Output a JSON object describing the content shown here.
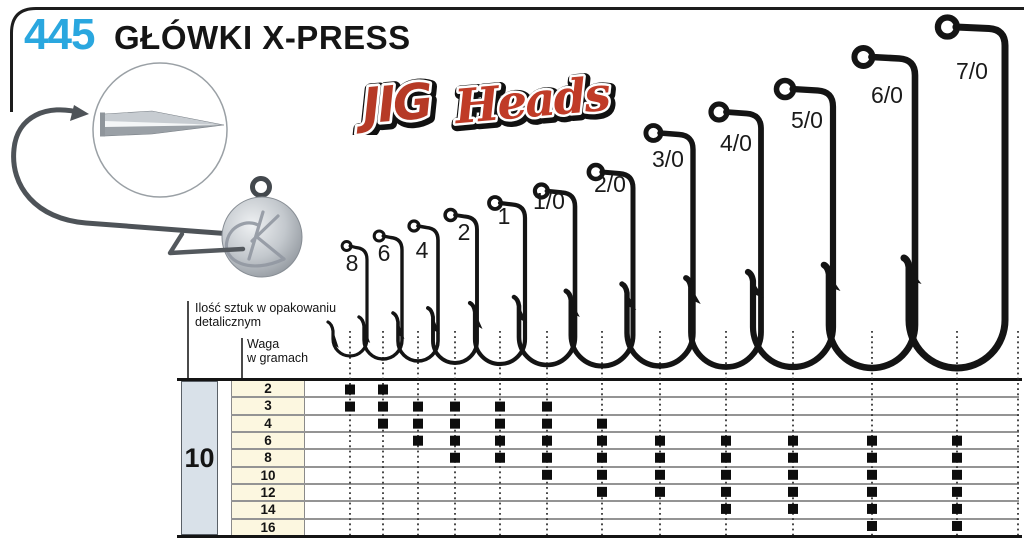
{
  "header": {
    "code": "445",
    "title": "GŁÓWKI X-PRESS",
    "code_color": "#2aa7df"
  },
  "logo": {
    "word1": "JIG",
    "word2": "Heads",
    "red": "#b63a26",
    "outline": "#111111",
    "inline": "#ffffff"
  },
  "table": {
    "qty_label_line1": "Ilość sztuk w opakowaniu",
    "qty_label_line2": "detalicznym",
    "weight_label_line1": "Waga",
    "weight_label_line2": "w gramach",
    "qty_value": "10",
    "hook_sizes": [
      "8",
      "6",
      "4",
      "2",
      "1",
      "1/0",
      "2/0",
      "3/0",
      "4/0",
      "5/0",
      "6/0",
      "7/0"
    ],
    "availability": [
      {
        "weight": "2",
        "hooks": [
          "8",
          "6"
        ]
      },
      {
        "weight": "3",
        "hooks": [
          "8",
          "6",
          "4",
          "2",
          "1",
          "1/0"
        ]
      },
      {
        "weight": "4",
        "hooks": [
          "6",
          "4",
          "2",
          "1",
          "1/0",
          "2/0"
        ]
      },
      {
        "weight": "6",
        "hooks": [
          "4",
          "2",
          "1",
          "1/0",
          "2/0",
          "3/0",
          "4/0",
          "5/0",
          "6/0",
          "7/0"
        ]
      },
      {
        "weight": "8",
        "hooks": [
          "2",
          "1",
          "1/0",
          "2/0",
          "3/0",
          "4/0",
          "5/0",
          "6/0",
          "7/0"
        ]
      },
      {
        "weight": "10",
        "hooks": [
          "1/0",
          "2/0",
          "3/0",
          "4/0",
          "5/0",
          "6/0",
          "7/0"
        ]
      },
      {
        "weight": "12",
        "hooks": [
          "2/0",
          "3/0",
          "4/0",
          "5/0",
          "6/0",
          "7/0"
        ]
      },
      {
        "weight": "14",
        "hooks": [
          "4/0",
          "5/0",
          "6/0",
          "7/0"
        ]
      },
      {
        "weight": "16",
        "hooks": [
          "6/0",
          "7/0"
        ]
      }
    ],
    "colors": {
      "qty_column_bg": "#d9e1e9",
      "weight_column_bg": "#fcf7e0",
      "square": "#0d0d0d"
    }
  }
}
